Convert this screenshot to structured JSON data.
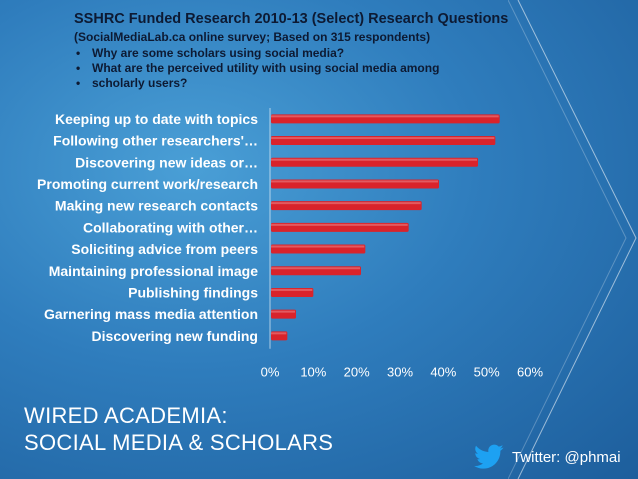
{
  "header": {
    "title": "SSHRC Funded Research 2010-13 (Select) Research Questions",
    "subtitle": "(SocialMediaLab.ca online survey; Based on 315 respondents)",
    "bullets": [
      "Why are some scholars using social media?",
      "What are the perceived utility with using social media among",
      "scholarly users?"
    ]
  },
  "footer": {
    "title_line1": "WIRED ACADEMIA:",
    "title_line2": "SOCIAL MEDIA & SCHOLARS",
    "twitter_handle": "Twitter: @phmai",
    "twitter_icon": "twitter-bird-icon",
    "twitter_color": "#1da1f2"
  },
  "chart_data": {
    "type": "bar",
    "orientation": "horizontal",
    "categories": [
      "Keeping up to date with topics",
      "Following other researchers'…",
      "Discovering new ideas or…",
      "Promoting current work/research",
      "Making new research contacts",
      "Collaborating with other…",
      "Soliciting advice from peers",
      "Maintaining professional image",
      "Publishing findings",
      "Garnering mass media attention",
      "Discovering new funding"
    ],
    "values": [
      53,
      52,
      48,
      39,
      35,
      32,
      22,
      21,
      10,
      6,
      4
    ],
    "xlim": [
      0,
      60
    ],
    "x_ticks": [
      0,
      10,
      20,
      30,
      40,
      50,
      60
    ],
    "x_tick_labels": [
      "0%",
      "10%",
      "20%",
      "30%",
      "40%",
      "50%",
      "60%"
    ],
    "bar_color": "#d9232b",
    "grid": false
  }
}
